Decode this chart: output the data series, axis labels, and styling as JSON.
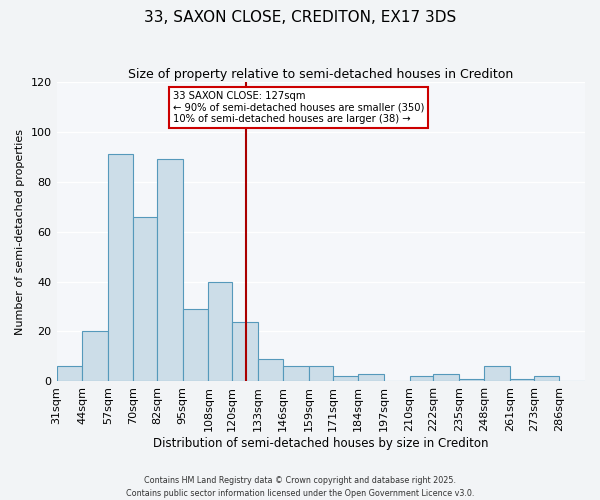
{
  "title": "33, SAXON CLOSE, CREDITON, EX17 3DS",
  "subtitle": "Size of property relative to semi-detached houses in Crediton",
  "xlabel": "Distribution of semi-detached houses by size in Crediton",
  "ylabel": "Number of semi-detached properties",
  "bin_labels": [
    "31sqm",
    "44sqm",
    "57sqm",
    "70sqm",
    "82sqm",
    "95sqm",
    "108sqm",
    "120sqm",
    "133sqm",
    "146sqm",
    "159sqm",
    "171sqm",
    "184sqm",
    "197sqm",
    "210sqm",
    "222sqm",
    "235sqm",
    "248sqm",
    "261sqm",
    "273sqm",
    "286sqm"
  ],
  "bin_edges": [
    31,
    44,
    57,
    70,
    82,
    95,
    108,
    120,
    133,
    146,
    159,
    171,
    184,
    197,
    210,
    222,
    235,
    248,
    261,
    273,
    286,
    299
  ],
  "bar_heights": [
    6,
    20,
    91,
    66,
    89,
    29,
    40,
    24,
    9,
    6,
    6,
    2,
    3,
    0,
    2,
    3,
    1,
    6,
    1,
    2,
    0
  ],
  "bar_color": "#ccdde8",
  "bar_edge_color": "#5599bb",
  "vline_x": 127,
  "vline_color": "#aa0000",
  "ylim": [
    0,
    120
  ],
  "annotation_line1": "33 SAXON CLOSE: 127sqm",
  "annotation_line2": "← 90% of semi-detached houses are smaller (350)",
  "annotation_line3": "10% of semi-detached houses are larger (38) →",
  "annotation_box_color": "#ffffff",
  "annotation_border_color": "#cc0000",
  "footer1": "Contains HM Land Registry data © Crown copyright and database right 2025.",
  "footer2": "Contains public sector information licensed under the Open Government Licence v3.0.",
  "bg_color": "#f2f4f6",
  "plot_bg_color": "#f5f7fa"
}
